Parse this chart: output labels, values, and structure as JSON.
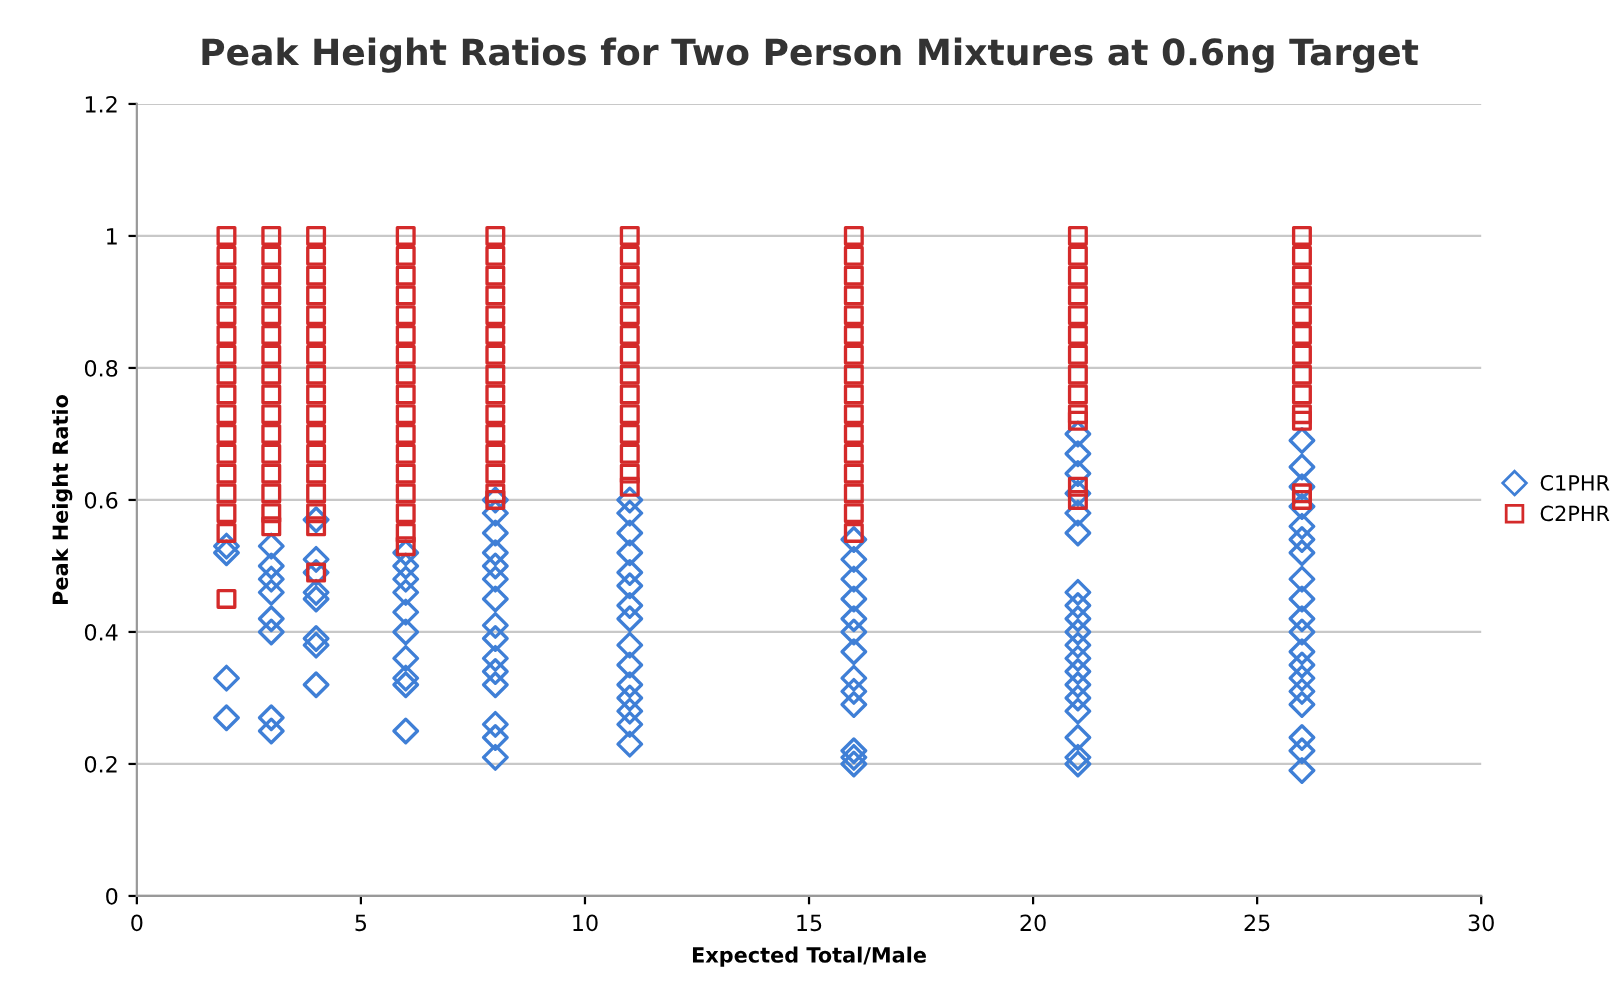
{
  "chart_data": {
    "type": "scatter",
    "title": "Peak Height Ratios for Two Person Mixtures at 0.6ng Target",
    "xlabel": "Expected Total/Male",
    "ylabel": "Peak Height Ratio",
    "xlim": [
      0,
      30
    ],
    "ylim": [
      0,
      1.2
    ],
    "xticks": [
      0,
      5,
      10,
      15,
      20,
      25,
      30
    ],
    "yticks": [
      0,
      0.2,
      0.4,
      0.6,
      0.8,
      1,
      1.2
    ],
    "grid": "y",
    "legend": "right",
    "series": [
      {
        "name": "C1PHR",
        "color": "#3f7fd6",
        "marker": "diamond",
        "x": [
          2,
          2,
          2,
          2,
          3,
          3,
          3,
          3,
          3,
          3,
          3,
          3,
          4,
          4,
          4,
          4,
          4,
          4,
          4,
          4,
          6,
          6,
          6,
          6,
          6,
          6,
          6,
          6,
          6,
          6,
          8,
          8,
          8,
          8,
          8,
          8,
          8,
          8,
          8,
          8,
          8,
          8,
          8,
          8,
          8,
          11,
          11,
          11,
          11,
          11,
          11,
          11,
          11,
          11,
          11,
          11,
          11,
          11,
          11,
          11,
          16,
          16,
          16,
          16,
          16,
          16,
          16,
          16,
          16,
          16,
          16,
          16,
          16,
          21,
          21,
          21,
          21,
          21,
          21,
          21,
          21,
          21,
          21,
          21,
          21,
          21,
          21,
          21,
          21,
          21,
          21,
          21,
          26,
          26,
          26,
          26,
          26,
          26,
          26,
          26,
          26,
          26,
          26,
          26,
          26,
          26,
          26,
          26,
          26,
          26,
          26
        ],
        "values": [
          0.52,
          0.53,
          0.33,
          0.27,
          0.53,
          0.5,
          0.48,
          0.46,
          0.42,
          0.4,
          0.27,
          0.25,
          0.57,
          0.51,
          0.49,
          0.46,
          0.45,
          0.39,
          0.38,
          0.32,
          0.52,
          0.5,
          0.48,
          0.46,
          0.43,
          0.4,
          0.36,
          0.33,
          0.32,
          0.25,
          0.6,
          0.58,
          0.55,
          0.52,
          0.5,
          0.48,
          0.45,
          0.41,
          0.39,
          0.36,
          0.34,
          0.32,
          0.26,
          0.24,
          0.21,
          0.6,
          0.58,
          0.55,
          0.52,
          0.49,
          0.47,
          0.44,
          0.42,
          0.38,
          0.35,
          0.32,
          0.3,
          0.28,
          0.26,
          0.23,
          0.54,
          0.51,
          0.48,
          0.45,
          0.42,
          0.4,
          0.37,
          0.33,
          0.31,
          0.29,
          0.22,
          0.21,
          0.2,
          0.7,
          0.67,
          0.64,
          0.61,
          0.58,
          0.55,
          0.46,
          0.44,
          0.42,
          0.4,
          0.38,
          0.36,
          0.34,
          0.32,
          0.3,
          0.28,
          0.24,
          0.21,
          0.2,
          0.69,
          0.65,
          0.62,
          0.59,
          0.56,
          0.54,
          0.52,
          0.48,
          0.45,
          0.42,
          0.4,
          0.37,
          0.35,
          0.33,
          0.31,
          0.29,
          0.24,
          0.22,
          0.19
        ]
      },
      {
        "name": "C2PHR",
        "color": "#d42a2a",
        "marker": "square",
        "x": [
          2,
          2,
          2,
          2,
          2,
          2,
          2,
          2,
          2,
          2,
          2,
          2,
          2,
          2,
          2,
          2,
          2,
          3,
          3,
          3,
          3,
          3,
          3,
          3,
          3,
          3,
          3,
          3,
          3,
          3,
          3,
          3,
          3,
          4,
          4,
          4,
          4,
          4,
          4,
          4,
          4,
          4,
          4,
          4,
          4,
          4,
          4,
          4,
          4,
          4,
          6,
          6,
          6,
          6,
          6,
          6,
          6,
          6,
          6,
          6,
          6,
          6,
          6,
          6,
          6,
          6,
          6,
          8,
          8,
          8,
          8,
          8,
          8,
          8,
          8,
          8,
          8,
          8,
          8,
          8,
          8,
          8,
          11,
          11,
          11,
          11,
          11,
          11,
          11,
          11,
          11,
          11,
          11,
          11,
          11,
          11,
          16,
          16,
          16,
          16,
          16,
          16,
          16,
          16,
          16,
          16,
          16,
          16,
          16,
          16,
          16,
          16,
          21,
          21,
          21,
          21,
          21,
          21,
          21,
          21,
          21,
          21,
          21,
          21,
          21,
          26,
          26,
          26,
          26,
          26,
          26,
          26,
          26,
          26,
          26,
          26,
          26,
          26
        ],
        "values": [
          1,
          0.97,
          0.94,
          0.91,
          0.88,
          0.85,
          0.82,
          0.79,
          0.76,
          0.73,
          0.7,
          0.67,
          0.64,
          0.61,
          0.58,
          0.55,
          0.45,
          1,
          0.97,
          0.94,
          0.91,
          0.88,
          0.85,
          0.82,
          0.79,
          0.76,
          0.73,
          0.7,
          0.67,
          0.64,
          0.61,
          0.58,
          0.56,
          1,
          0.97,
          0.94,
          0.91,
          0.88,
          0.85,
          0.82,
          0.79,
          0.76,
          0.73,
          0.7,
          0.67,
          0.64,
          0.61,
          0.58,
          0.56,
          0.49,
          1,
          0.97,
          0.94,
          0.91,
          0.88,
          0.85,
          0.82,
          0.79,
          0.76,
          0.73,
          0.7,
          0.67,
          0.64,
          0.61,
          0.58,
          0.55,
          0.53,
          1,
          0.97,
          0.94,
          0.91,
          0.88,
          0.85,
          0.82,
          0.79,
          0.76,
          0.73,
          0.7,
          0.67,
          0.64,
          0.61,
          0.6,
          1,
          0.97,
          0.94,
          0.91,
          0.88,
          0.85,
          0.82,
          0.79,
          0.76,
          0.73,
          0.7,
          0.67,
          0.64,
          0.62,
          1,
          0.97,
          0.94,
          0.91,
          0.88,
          0.85,
          0.82,
          0.79,
          0.76,
          0.73,
          0.7,
          0.67,
          0.64,
          0.61,
          0.58,
          0.55,
          1,
          0.97,
          0.94,
          0.91,
          0.88,
          0.85,
          0.82,
          0.79,
          0.76,
          0.73,
          0.72,
          0.62,
          0.6,
          1,
          0.97,
          0.94,
          0.91,
          0.88,
          0.85,
          0.82,
          0.79,
          0.76,
          0.73,
          0.72,
          0.61,
          0.6
        ]
      }
    ]
  }
}
